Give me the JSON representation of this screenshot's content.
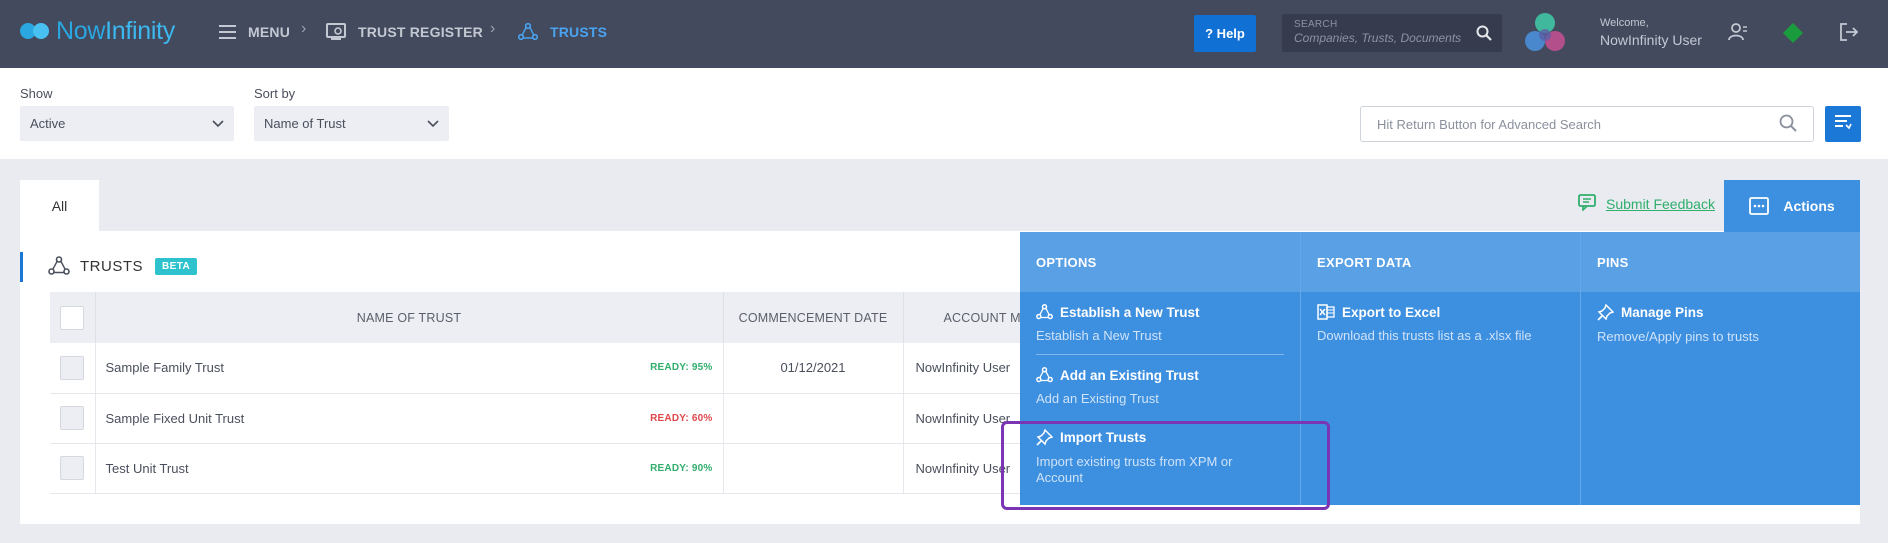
{
  "header": {
    "brand_prefix": "Now",
    "brand_suffix": "Infinity",
    "menu_label": "MENU",
    "breadcrumb": [
      "TRUST REGISTER",
      "TRUSTS"
    ],
    "breadcrumb_sep": "›",
    "help_label": "? Help",
    "search_label": "SEARCH",
    "search_placeholder": "Companies, Trusts, Documents",
    "welcome": "Welcome,",
    "user_name": "NowInfinity User"
  },
  "filters": {
    "show_label": "Show",
    "show_value": "Active",
    "sort_label": "Sort by",
    "sort_value": "Name of Trust",
    "advanced_placeholder": "Hit Return Button for Advanced Search"
  },
  "tabs": {
    "all": "All"
  },
  "feedback_label": "Submit Feedback",
  "actions_label": "Actions",
  "section": {
    "title": "TRUSTS",
    "badge": "BETA"
  },
  "table": {
    "columns": [
      "NAME OF TRUST",
      "COMMENCEMENT DATE",
      "ACCOUNT MA"
    ],
    "rows": [
      {
        "name": "Sample Family Trust",
        "status": "READY: 95%",
        "status_color": "#2fae6c",
        "date": "01/12/2021",
        "manager": "NowInfinity User"
      },
      {
        "name": "Sample Fixed Unit Trust",
        "status": "READY: 60%",
        "status_color": "#e0464c",
        "date": "",
        "manager": "NowInfinity User"
      },
      {
        "name": "Test Unit Trust",
        "status": "READY: 90%",
        "status_color": "#2fae6c",
        "date": "",
        "manager": "NowInfinity User"
      }
    ]
  },
  "actions_menu": {
    "options": {
      "title": "OPTIONS",
      "items": [
        {
          "title": "Establish a New Trust",
          "desc": "Establish a New Trust",
          "icon": "trust-icon"
        },
        {
          "title": "Add an Existing Trust",
          "desc": "Add an Existing Trust",
          "icon": "trust-icon"
        },
        {
          "title": "Import Trusts",
          "desc": "Import existing trusts from XPM or Account",
          "icon": "import-pin-icon"
        }
      ]
    },
    "export": {
      "title": "EXPORT DATA",
      "items": [
        {
          "title": "Export to Excel",
          "desc": "Download this trusts list as a .xlsx file",
          "icon": "excel-icon"
        }
      ]
    },
    "pins": {
      "title": "PINS",
      "items": [
        {
          "title": "Manage Pins",
          "desc": "Remove/Apply pins to trusts",
          "icon": "pin-icon"
        }
      ]
    }
  },
  "colors": {
    "topbar": "#434a5d",
    "accent": "#1c78d6",
    "dropdown": "#3d8fe0",
    "highlight": "#7a35b4"
  }
}
